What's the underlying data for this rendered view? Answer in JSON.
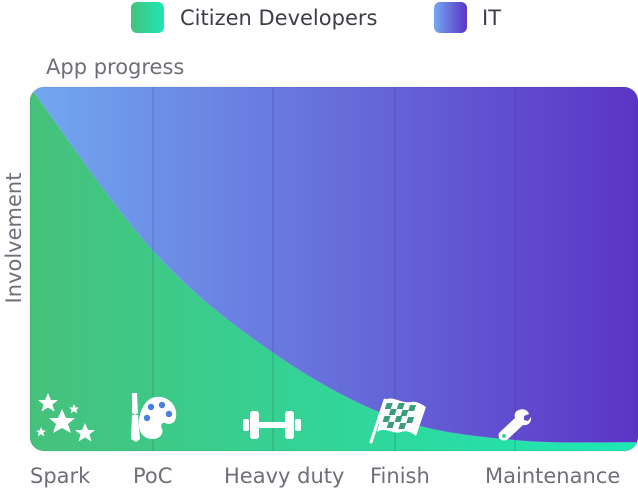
{
  "chart_data": {
    "type": "area",
    "xlabel": "App progress",
    "ylabel": "Involvement",
    "categories": [
      "Spark",
      "PoC",
      "Heavy duty",
      "Finish",
      "Maintenance"
    ],
    "series": [
      {
        "name": "Citizen Developers",
        "color_start": "#46c17b",
        "color_end": "#1de8b5",
        "values": [
          1.0,
          0.55,
          0.27,
          0.09,
          0.03
        ]
      },
      {
        "name": "IT",
        "color_start": "#72a8f0",
        "color_end": "#5b34c6",
        "values": [
          0.0,
          0.45,
          0.73,
          0.91,
          0.97
        ]
      }
    ],
    "stacked": true,
    "ylim": [
      0,
      1
    ],
    "grid": "vertical",
    "legend": "top",
    "stage_icons": [
      "sparkles-icon",
      "palette-brush-icon",
      "dumbbell-icon",
      "checkered-flag-icon",
      "wrench-icon"
    ]
  }
}
